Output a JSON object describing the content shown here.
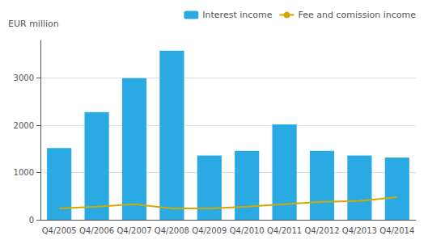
{
  "chart_data": {
    "type": "bar",
    "ylabel": "EUR million",
    "categories": [
      "Q4/2005",
      "Q4/2006",
      "Q4/2007",
      "Q4/2008",
      "Q4/2009",
      "Q4/2010",
      "Q4/2011",
      "Q4/2012",
      "Q4/2013",
      "Q4/2014"
    ],
    "series": [
      {
        "name": "Interest income",
        "type": "bar",
        "color": "#29aae2",
        "values": [
          1520,
          2280,
          3000,
          3580,
          1360,
          1460,
          2020,
          1460,
          1360,
          1320
        ]
      },
      {
        "name": "Fee and comission income",
        "type": "line",
        "color": "#d4a800",
        "values": [
          240,
          280,
          330,
          240,
          240,
          280,
          330,
          380,
          400,
          480
        ]
      }
    ],
    "ylim": [
      0,
      3800
    ],
    "yticks": [
      0,
      1000,
      2000,
      3000
    ],
    "grid": true,
    "legend": "upper right"
  }
}
